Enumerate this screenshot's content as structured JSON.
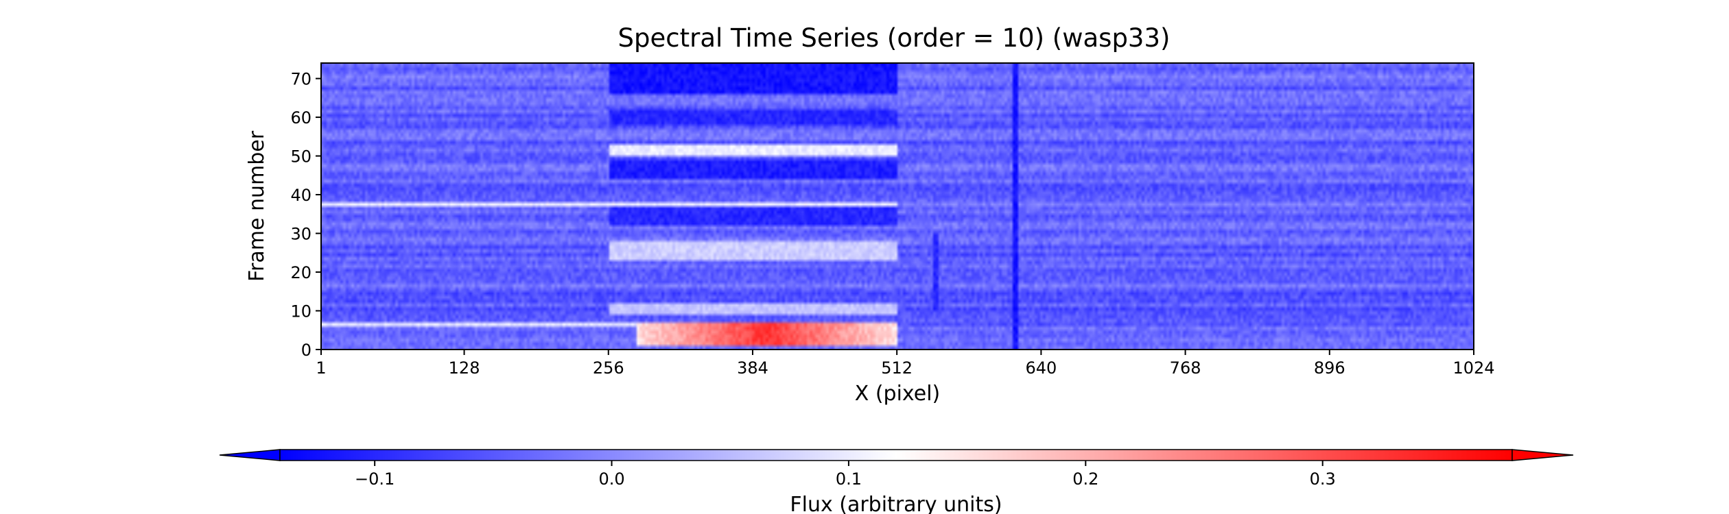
{
  "chart_data": {
    "type": "heatmap",
    "title": "Spectral Time Series (order = 10) (wasp33)",
    "xlabel": "X (pixel)",
    "ylabel": "Frame number",
    "xlim": [
      1,
      1024
    ],
    "ylim": [
      0,
      74
    ],
    "x_ticks": [
      1,
      128,
      256,
      384,
      512,
      640,
      768,
      896,
      1024
    ],
    "x_tick_labels": [
      "1",
      "128",
      "256",
      "384",
      "512",
      "640",
      "768",
      "896",
      "1024"
    ],
    "y_ticks": [
      0,
      10,
      20,
      30,
      40,
      50,
      60,
      70
    ],
    "y_tick_labels": [
      "0",
      "10",
      "20",
      "30",
      "40",
      "50",
      "60",
      "70"
    ],
    "n_frames": 74,
    "colormap": "bwr",
    "colors": {
      "low": "#0000ff",
      "mid": "#ffffff",
      "high": "#ff0000"
    },
    "color_range": [
      -0.14,
      0.38
    ],
    "background_level": -0.04,
    "features": [
      {
        "description": "dark band",
        "x_range": [
          256,
          512
        ],
        "frames": [
          66,
          74
        ],
        "flux": -0.12
      },
      {
        "description": "dark band",
        "x_range": [
          256,
          512
        ],
        "frames": [
          58,
          62
        ],
        "flux": -0.1
      },
      {
        "description": "dark band",
        "x_range": [
          256,
          512
        ],
        "frames": [
          44,
          49
        ],
        "flux": -0.11
      },
      {
        "description": "dark band",
        "x_range": [
          256,
          512
        ],
        "frames": [
          32,
          37
        ],
        "flux": -0.1
      },
      {
        "description": "bright band",
        "x_range": [
          256,
          512
        ],
        "frames": [
          50,
          53
        ],
        "flux": 0.1
      },
      {
        "description": "bright band",
        "x_range": [
          256,
          512
        ],
        "frames": [
          23,
          28
        ],
        "flux": 0.07
      },
      {
        "description": "bright band",
        "x_range": [
          256,
          512
        ],
        "frames": [
          9,
          12
        ],
        "flux": 0.06
      },
      {
        "description": "bright streak",
        "x_range": [
          1,
          512
        ],
        "frames": [
          37,
          38
        ],
        "flux": 0.11
      },
      {
        "description": "bright streak",
        "x_range": [
          1,
          512
        ],
        "frames": [
          6,
          7
        ],
        "flux": 0.1
      },
      {
        "description": "red emission",
        "x_range": [
          280,
          512
        ],
        "frames": [
          1,
          7
        ],
        "flux": 0.33
      },
      {
        "description": "dark vertical line",
        "x_range": [
          615,
          620
        ],
        "frames": [
          0,
          74
        ],
        "flux": -0.12
      },
      {
        "description": "dark vertical line",
        "x_range": [
          545,
          549
        ],
        "frames": [
          10,
          30
        ],
        "flux": -0.1
      }
    ],
    "colorbar": {
      "label": "Flux (arbitrary units)",
      "orientation": "horizontal",
      "extend": "both",
      "ticks": [
        -0.1,
        0.0,
        0.1,
        0.2,
        0.3
      ],
      "tick_labels": [
        "−0.1",
        "0.0",
        "0.1",
        "0.2",
        "0.3"
      ]
    }
  }
}
